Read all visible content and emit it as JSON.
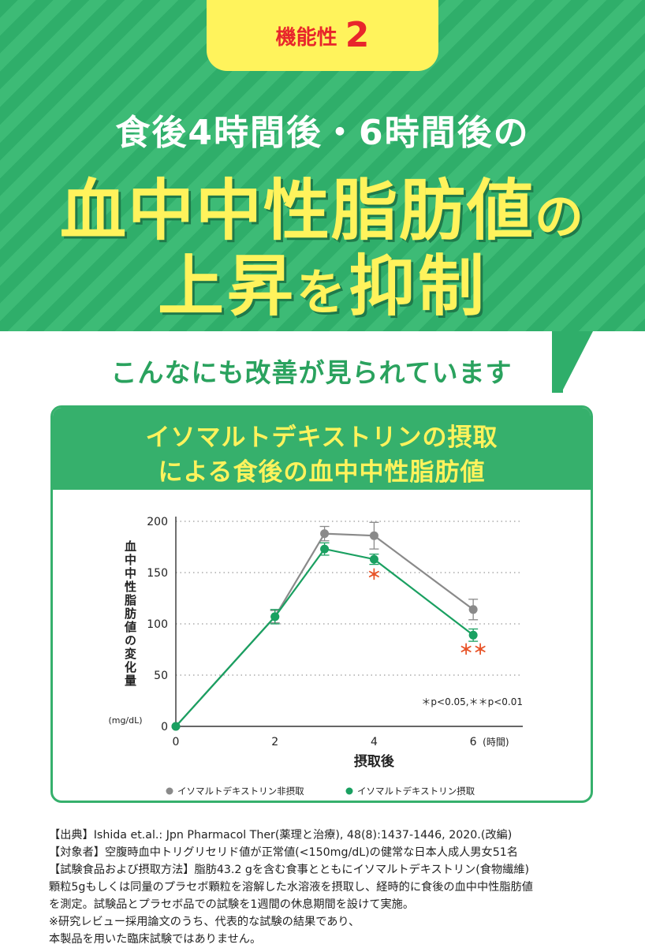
{
  "badge": {
    "label": "機能性",
    "number": "2"
  },
  "headline": {
    "line1": "食後4時間後・6時間後の",
    "line2_main": "血中中性脂肪値",
    "line2_small": "の",
    "line3_main_a": "上昇",
    "line3_small": "を",
    "line3_main_b": "抑制"
  },
  "subhead": "こんなにも改善が見られています",
  "card_title": {
    "line1": "イソマルトデキストリンの摂取",
    "line2": "による食後の血中中性脂肪値"
  },
  "chart_data": {
    "type": "line",
    "x": [
      0,
      2,
      3,
      4,
      6
    ],
    "xticks": [
      "0",
      "2",
      "4",
      "6"
    ],
    "xtick_values": [
      0,
      2,
      4,
      6
    ],
    "xunit": "(時間)",
    "xlabel": "摂取後",
    "ylabel": "血中中性脂肪値の変化量",
    "yunit": "(mg/dL)",
    "yticks": [
      "0",
      "50",
      "100",
      "150",
      "200"
    ],
    "ylim": [
      0,
      200
    ],
    "xlim": [
      0,
      7
    ],
    "grid": "horizontal dotted",
    "series": [
      {
        "name": "イソマルトデキストリン非摂取",
        "color": "#8a8a8a",
        "values": [
          0,
          107,
          188,
          186,
          114
        ],
        "error": [
          0,
          6,
          7,
          13,
          10
        ]
      },
      {
        "name": "イソマルトデキストリン摂取",
        "color": "#1aa061",
        "values": [
          0,
          107,
          173,
          163,
          89
        ],
        "error": [
          0,
          7,
          6,
          5,
          6
        ]
      }
    ],
    "significance": [
      {
        "x": 4,
        "y": 143,
        "mark": "＊"
      },
      {
        "x": 6,
        "y": 70,
        "mark": "＊＊"
      }
    ],
    "significance_color": "#e8552a",
    "note": "＊p<0.05,＊＊p<0.01",
    "legend_position": "bottom"
  },
  "footnotes": [
    "【出典】Ishida et.al.: Jpn Pharmacol Ther(薬理と治療), 48(8):1437-1446, 2020.(改編)",
    "【対象者】空腹時血中トリグリセリド値が正常値(<150mg/dL)の健常な日本人成人男女51名",
    "【試験食品および摂取方法】脂肪43.2 gを含む食事とともにイソマルトデキストリン(食物繊維)",
    "顆粒5gもしくは同量のプラセボ顆粒を溶解した水溶液を摂取し、経時的に食後の血中中性脂肪値",
    "を測定。試験品とプラセボ品での試験を1週間の休息期間を設けて実施。",
    "※研究レビュー採用論文のうち、代表的な試験の結果であり、",
    "本製品を用いた臨床試験ではありません。"
  ]
}
